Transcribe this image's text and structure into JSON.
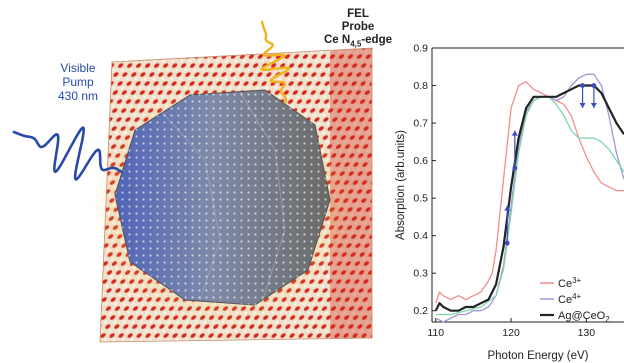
{
  "illustration": {
    "pump_label": [
      "Visible",
      "Pump",
      "430 nm"
    ],
    "probe_label": [
      "FEL",
      "Probe"
    ],
    "edge_label": {
      "prefix": "Ce N",
      "sub": "4,5",
      "suffix": "-edge"
    },
    "colors": {
      "pump": "#2a4aa8",
      "probe": "#f2b21a",
      "oxygen": "#d42a1e",
      "cerium": "#e8dcc8",
      "particle": "#7f8aa8"
    }
  },
  "chart_data": {
    "type": "line",
    "xlabel": "Photon Energy (eV)",
    "ylabel": "Absorption (arb.units)",
    "xlim": [
      109.5,
      135
    ],
    "ylim": [
      0.17,
      0.9
    ],
    "xticks": [
      "110",
      "120",
      "130"
    ],
    "xtick_values": [
      110,
      120,
      130
    ],
    "yticks": [
      "0.2",
      "0.3",
      "0.4",
      "0.5",
      "0.6",
      "0.7",
      "0.8",
      "0.9"
    ],
    "ytick_values": [
      0.2,
      0.3,
      0.4,
      0.5,
      0.6,
      0.7,
      0.8,
      0.9
    ],
    "legend_position": "bottom-right",
    "series": [
      {
        "name": "Ce",
        "sup": "3+",
        "color": "#f28e8e",
        "x": [
          110,
          110.5,
          111,
          112,
          113,
          114,
          115,
          116,
          117,
          117.5,
          118,
          119,
          120,
          121,
          122,
          123,
          124,
          125,
          126,
          127,
          128,
          129,
          130,
          131,
          132,
          133,
          134,
          135
        ],
        "y": [
          0.22,
          0.25,
          0.24,
          0.23,
          0.24,
          0.23,
          0.24,
          0.25,
          0.28,
          0.3,
          0.36,
          0.55,
          0.74,
          0.8,
          0.81,
          0.79,
          0.78,
          0.77,
          0.76,
          0.75,
          0.72,
          0.66,
          0.61,
          0.57,
          0.54,
          0.53,
          0.52,
          0.52
        ]
      },
      {
        "name": "Ce",
        "sup": "4+",
        "color": "#a495d6",
        "x": [
          110,
          111,
          112,
          113,
          114,
          115,
          116,
          117,
          118,
          119,
          120,
          121,
          122,
          123,
          124,
          125,
          126,
          127,
          128,
          129,
          130,
          131,
          132,
          133,
          134,
          135
        ],
        "y": [
          0.18,
          0.17,
          0.18,
          0.19,
          0.19,
          0.2,
          0.2,
          0.21,
          0.24,
          0.32,
          0.48,
          0.64,
          0.73,
          0.76,
          0.77,
          0.77,
          0.76,
          0.77,
          0.8,
          0.82,
          0.83,
          0.83,
          0.8,
          0.72,
          0.62,
          0.55
        ]
      },
      {
        "name": "",
        "sup": "",
        "color": "#7fd6a8",
        "x": [
          110,
          112,
          114,
          116,
          118,
          119,
          120,
          121,
          122,
          123,
          124,
          125,
          126,
          127,
          128,
          129,
          130,
          131,
          132,
          133,
          134,
          135
        ],
        "y": [
          0.19,
          0.19,
          0.2,
          0.21,
          0.24,
          0.31,
          0.46,
          0.62,
          0.72,
          0.76,
          0.77,
          0.77,
          0.75,
          0.72,
          0.68,
          0.66,
          0.66,
          0.66,
          0.65,
          0.63,
          0.6,
          0.57
        ]
      },
      {
        "name": "Ag@CeO",
        "sup": "",
        "sub": "2",
        "color": "#222222",
        "x": [
          110,
          110.5,
          111,
          112,
          113,
          114,
          115,
          116,
          117,
          118,
          119,
          120,
          121,
          122,
          123,
          124,
          125,
          126,
          127,
          128,
          129,
          130,
          131,
          132,
          133,
          134,
          135
        ],
        "y": [
          0.2,
          0.22,
          0.21,
          0.2,
          0.2,
          0.21,
          0.21,
          0.22,
          0.23,
          0.27,
          0.37,
          0.53,
          0.66,
          0.74,
          0.77,
          0.77,
          0.77,
          0.77,
          0.78,
          0.79,
          0.8,
          0.8,
          0.8,
          0.78,
          0.74,
          0.7,
          0.67
        ]
      }
    ],
    "arrows": [
      {
        "x": 119.5,
        "y_from": 0.38,
        "y_to": 0.48,
        "dir": "up"
      },
      {
        "x": 120.5,
        "y_from": 0.58,
        "y_to": 0.68,
        "dir": "up"
      },
      {
        "x": 129.5,
        "y_from": 0.8,
        "y_to": 0.74,
        "dir": "down"
      },
      {
        "x": 131,
        "y_from": 0.8,
        "y_to": 0.74,
        "dir": "down"
      }
    ],
    "markers": [
      {
        "x": 119.5,
        "y": 0.38
      },
      {
        "x": 120.5,
        "y": 0.58
      },
      {
        "x": 129.5,
        "y": 0.8
      },
      {
        "x": 131,
        "y": 0.8
      }
    ]
  }
}
